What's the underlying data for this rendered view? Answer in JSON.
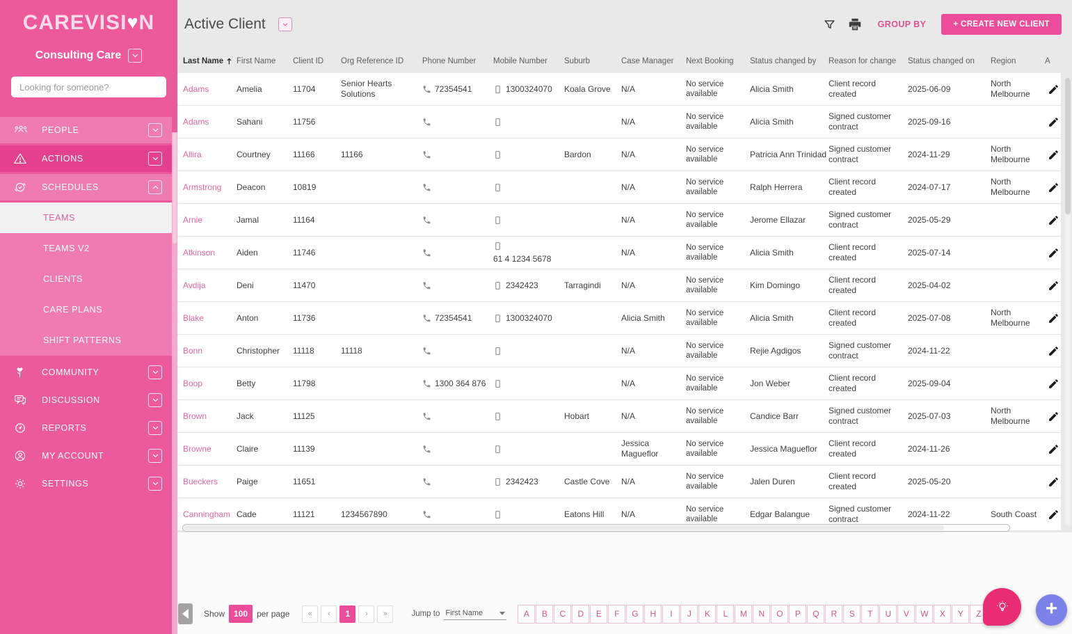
{
  "colors": {
    "accent_pink": "#EC4D9B",
    "sidebar_base": "#EC5A9C",
    "sidebar_light": "#EF7BB1",
    "sidebar_dark": "#E3418C",
    "link_pink": "#E0679F",
    "fab_purple": "#7B82E8",
    "fab_pink": "#E92D74"
  },
  "sidebar": {
    "logo_pre": "CAREVISI",
    "logo_heart": "♥",
    "logo_post": "N",
    "org_selector": "Consulting Care",
    "search_placeholder": "Looking for someone?",
    "items": [
      {
        "label": "PEOPLE"
      },
      {
        "label": "ACTIONS"
      },
      {
        "label": "SCHEDULES"
      },
      {
        "label": "COMMUNITY"
      },
      {
        "label": "DISCUSSION"
      },
      {
        "label": "REPORTS"
      },
      {
        "label": "MY ACCOUNT"
      },
      {
        "label": "SETTINGS"
      }
    ],
    "schedules_submenu": [
      {
        "label": "TEAMS",
        "active": true
      },
      {
        "label": "TEAMS V2",
        "active": false
      },
      {
        "label": "CLIENTS",
        "active": false
      },
      {
        "label": "CARE PLANS",
        "active": false
      },
      {
        "label": "SHIFT PATTERNS",
        "active": false
      }
    ]
  },
  "topbar": {
    "title": "Active Client",
    "group_by_label": "GROUP BY",
    "create_button_label": "+ CREATE NEW CLIENT"
  },
  "table": {
    "columns": [
      "Last Name",
      "First Name",
      "Client ID",
      "Org Reference ID",
      "Phone Number",
      "Mobile Number",
      "Suburb",
      "Case Manager",
      "Next Booking",
      "Status changed by",
      "Reason for change",
      "Status changed on",
      "Region",
      "A"
    ],
    "sorted_column": "Last Name",
    "sort_direction": "ascending",
    "rows": [
      {
        "last_name": "Adams",
        "first_name": "Amelia",
        "client_id": "11704",
        "org_reference_id": "Senior Hearts Solutions",
        "phone_number": "72354541",
        "mobile_number": "1300324070",
        "suburb": "Koala Grove",
        "case_manager": "N/A",
        "next_booking": "No service available",
        "status_changed_by": "Alicia Smith",
        "reason_for_change": "Client record created",
        "status_changed_on": "2025-06-09",
        "region": "North Melbourne"
      },
      {
        "last_name": "Adams",
        "first_name": "Sahani",
        "client_id": "11756",
        "org_reference_id": "",
        "phone_number": "",
        "mobile_number": "",
        "suburb": "",
        "case_manager": "N/A",
        "next_booking": "No service available",
        "status_changed_by": "Alicia Smith",
        "reason_for_change": "Signed customer contract",
        "status_changed_on": "2025-09-16",
        "region": ""
      },
      {
        "last_name": "Allira",
        "first_name": "Courtney",
        "client_id": "11166",
        "org_reference_id": "11166",
        "phone_number": "",
        "mobile_number": "",
        "suburb": "Bardon",
        "case_manager": "N/A",
        "next_booking": "No service available",
        "status_changed_by": "Patricia Ann Trinidad",
        "reason_for_change": "Signed customer contract",
        "status_changed_on": "2024-11-29",
        "region": "North Melbourne"
      },
      {
        "last_name": "Armstrong",
        "first_name": "Deacon",
        "client_id": "10819",
        "org_reference_id": "",
        "phone_number": "",
        "mobile_number": "",
        "suburb": "",
        "case_manager": "N/A",
        "next_booking": "No service available",
        "status_changed_by": "Ralph Herrera",
        "reason_for_change": "Client record created",
        "status_changed_on": "2024-07-17",
        "region": "North Melbourne"
      },
      {
        "last_name": "Arnie",
        "first_name": "Jamal",
        "client_id": "11164",
        "org_reference_id": "",
        "phone_number": "",
        "mobile_number": "",
        "suburb": "",
        "case_manager": "N/A",
        "next_booking": "No service available",
        "status_changed_by": "Jerome Ellazar",
        "reason_for_change": "Signed customer contract",
        "status_changed_on": "2025-05-29",
        "region": ""
      },
      {
        "last_name": "Atkinson",
        "first_name": "Aiden",
        "client_id": "11746",
        "org_reference_id": "",
        "phone_number": "",
        "mobile_number": "61 4 1234 5678",
        "suburb": "",
        "case_manager": "N/A",
        "next_booking": "No service available",
        "status_changed_by": "Alicia Smith",
        "reason_for_change": "Client record created",
        "status_changed_on": "2025-07-14",
        "region": ""
      },
      {
        "last_name": "Avdija",
        "first_name": "Deni",
        "client_id": "11470",
        "org_reference_id": "",
        "phone_number": "",
        "mobile_number": "2342423",
        "suburb": "Tarragindi",
        "case_manager": "N/A",
        "next_booking": "No service available",
        "status_changed_by": "Kim Domingo",
        "reason_for_change": "Client record created",
        "status_changed_on": "2025-04-02",
        "region": ""
      },
      {
        "last_name": "Blake",
        "first_name": "Anton",
        "client_id": "11736",
        "org_reference_id": "",
        "phone_number": "72354541",
        "mobile_number": "1300324070",
        "suburb": "",
        "case_manager": "Alicia Smith",
        "next_booking": "No service available",
        "status_changed_by": "Alicia Smith",
        "reason_for_change": "Client record created",
        "status_changed_on": "2025-07-08",
        "region": "North Melbourne"
      },
      {
        "last_name": "Bonn",
        "first_name": "Christopher",
        "client_id": "11118",
        "org_reference_id": "11118",
        "phone_number": "",
        "mobile_number": "",
        "suburb": "",
        "case_manager": "N/A",
        "next_booking": "No service available",
        "status_changed_by": "Rejie Agdigos",
        "reason_for_change": "Signed customer contract",
        "status_changed_on": "2024-11-22",
        "region": ""
      },
      {
        "last_name": "Boop",
        "first_name": "Betty",
        "client_id": "11798",
        "org_reference_id": "",
        "phone_number": "1300 364 876",
        "mobile_number": "",
        "suburb": "",
        "case_manager": "N/A",
        "next_booking": "No service available",
        "status_changed_by": "Jon Weber",
        "reason_for_change": "Client record created",
        "status_changed_on": "2025-09-04",
        "region": ""
      },
      {
        "last_name": "Brown",
        "first_name": "Jack",
        "client_id": "11125",
        "org_reference_id": "",
        "phone_number": "",
        "mobile_number": "",
        "suburb": "Hobart",
        "case_manager": "N/A",
        "next_booking": "No service available",
        "status_changed_by": "Candice Barr",
        "reason_for_change": "Signed customer contract",
        "status_changed_on": "2025-07-03",
        "region": "North Melbourne"
      },
      {
        "last_name": "Browne",
        "first_name": "Claire",
        "client_id": "11139",
        "org_reference_id": "",
        "phone_number": "",
        "mobile_number": "",
        "suburb": "",
        "case_manager": "Jessica Magueflor",
        "next_booking": "No service available",
        "status_changed_by": "Jessica Magueflor",
        "reason_for_change": "Client record created",
        "status_changed_on": "2024-11-26",
        "region": ""
      },
      {
        "last_name": "Bueckers",
        "first_name": "Paige",
        "client_id": "11651",
        "org_reference_id": "",
        "phone_number": "",
        "mobile_number": "2342423",
        "suburb": "Castle Cove",
        "case_manager": "N/A",
        "next_booking": "No service available",
        "status_changed_by": "Jalen Duren",
        "reason_for_change": "Client record created",
        "status_changed_on": "2025-05-20",
        "region": ""
      },
      {
        "last_name": "Canningham",
        "first_name": "Cade",
        "client_id": "11121",
        "org_reference_id": "1234567890",
        "phone_number": "",
        "mobile_number": "",
        "suburb": "Eatons Hill",
        "case_manager": "N/A",
        "next_booking": "No service available",
        "status_changed_by": "Edgar Balangue",
        "reason_for_change": "Signed customer contract",
        "status_changed_on": "2024-11-22",
        "region": "South Coast"
      }
    ]
  },
  "footer": {
    "show_label": "Show",
    "page_size": "100",
    "per_page_label": "per page",
    "pager": [
      "«",
      "‹",
      "1",
      "›",
      "»"
    ],
    "active_page": "1",
    "jump_label": "Jump to",
    "jump_value": "First Name",
    "alphabet": [
      "A",
      "B",
      "C",
      "D",
      "E",
      "F",
      "G",
      "H",
      "I",
      "J",
      "K",
      "L",
      "M",
      "N",
      "O",
      "P",
      "Q",
      "R",
      "S",
      "T",
      "U",
      "V",
      "W",
      "X",
      "Y",
      "Z"
    ]
  }
}
